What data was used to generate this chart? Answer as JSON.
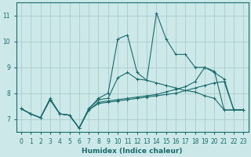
{
  "xlabel": "Humidex (Indice chaleur)",
  "bg_color": "#cce8e8",
  "grid_color": "#aacccc",
  "line_color": "#1a6b6b",
  "xlim": [
    -0.5,
    23.5
  ],
  "ylim": [
    6.5,
    11.5
  ],
  "yticks": [
    7,
    8,
    9,
    10,
    11
  ],
  "xticks": [
    0,
    1,
    2,
    3,
    4,
    5,
    6,
    7,
    8,
    9,
    10,
    11,
    12,
    13,
    14,
    15,
    16,
    17,
    18,
    19,
    20,
    21,
    22,
    23
  ],
  "series": [
    {
      "x": [
        0,
        1,
        2,
        3,
        4,
        5,
        6,
        7,
        8,
        9,
        10,
        11,
        12,
        13,
        14,
        15,
        16,
        17,
        18,
        19,
        20,
        21,
        22,
        23
      ],
      "y": [
        7.4,
        7.2,
        7.05,
        7.8,
        7.2,
        7.15,
        6.65,
        7.4,
        7.75,
        7.8,
        8.6,
        8.8,
        8.55,
        8.5,
        11.1,
        10.1,
        9.5,
        9.5,
        9.0,
        9.0,
        8.85,
        7.35,
        7.35,
        7.35
      ]
    },
    {
      "x": [
        0,
        1,
        2,
        3,
        4,
        5,
        6,
        7,
        8,
        9,
        10,
        11,
        12,
        13,
        14,
        15,
        16,
        17,
        18,
        19,
        20,
        21,
        22,
        23
      ],
      "y": [
        7.4,
        7.2,
        7.05,
        7.75,
        7.2,
        7.15,
        6.65,
        7.4,
        7.8,
        8.0,
        10.1,
        10.25,
        8.8,
        8.5,
        8.4,
        8.3,
        8.2,
        8.1,
        8.05,
        7.9,
        7.8,
        7.35,
        7.35,
        7.35
      ]
    },
    {
      "x": [
        0,
        1,
        2,
        3,
        4,
        5,
        6,
        7,
        8,
        9,
        10,
        11,
        12,
        13,
        14,
        15,
        16,
        17,
        18,
        19,
        20,
        21,
        22,
        23
      ],
      "y": [
        7.4,
        7.2,
        7.05,
        7.75,
        7.2,
        7.15,
        6.65,
        7.35,
        7.65,
        7.7,
        7.75,
        7.8,
        7.85,
        7.9,
        7.95,
        8.05,
        8.15,
        8.25,
        8.45,
        9.0,
        8.8,
        8.55,
        7.35,
        7.35
      ]
    },
    {
      "x": [
        0,
        1,
        2,
        3,
        4,
        5,
        6,
        7,
        8,
        9,
        10,
        11,
        12,
        13,
        14,
        15,
        16,
        17,
        18,
        19,
        20,
        21,
        22,
        23
      ],
      "y": [
        7.4,
        7.2,
        7.05,
        7.75,
        7.2,
        7.15,
        6.65,
        7.35,
        7.6,
        7.65,
        7.7,
        7.75,
        7.8,
        7.85,
        7.9,
        7.95,
        8.0,
        8.1,
        8.2,
        8.3,
        8.4,
        8.45,
        7.35,
        7.35
      ]
    }
  ],
  "marker": "+",
  "markersize": 3,
  "linewidth": 0.8
}
